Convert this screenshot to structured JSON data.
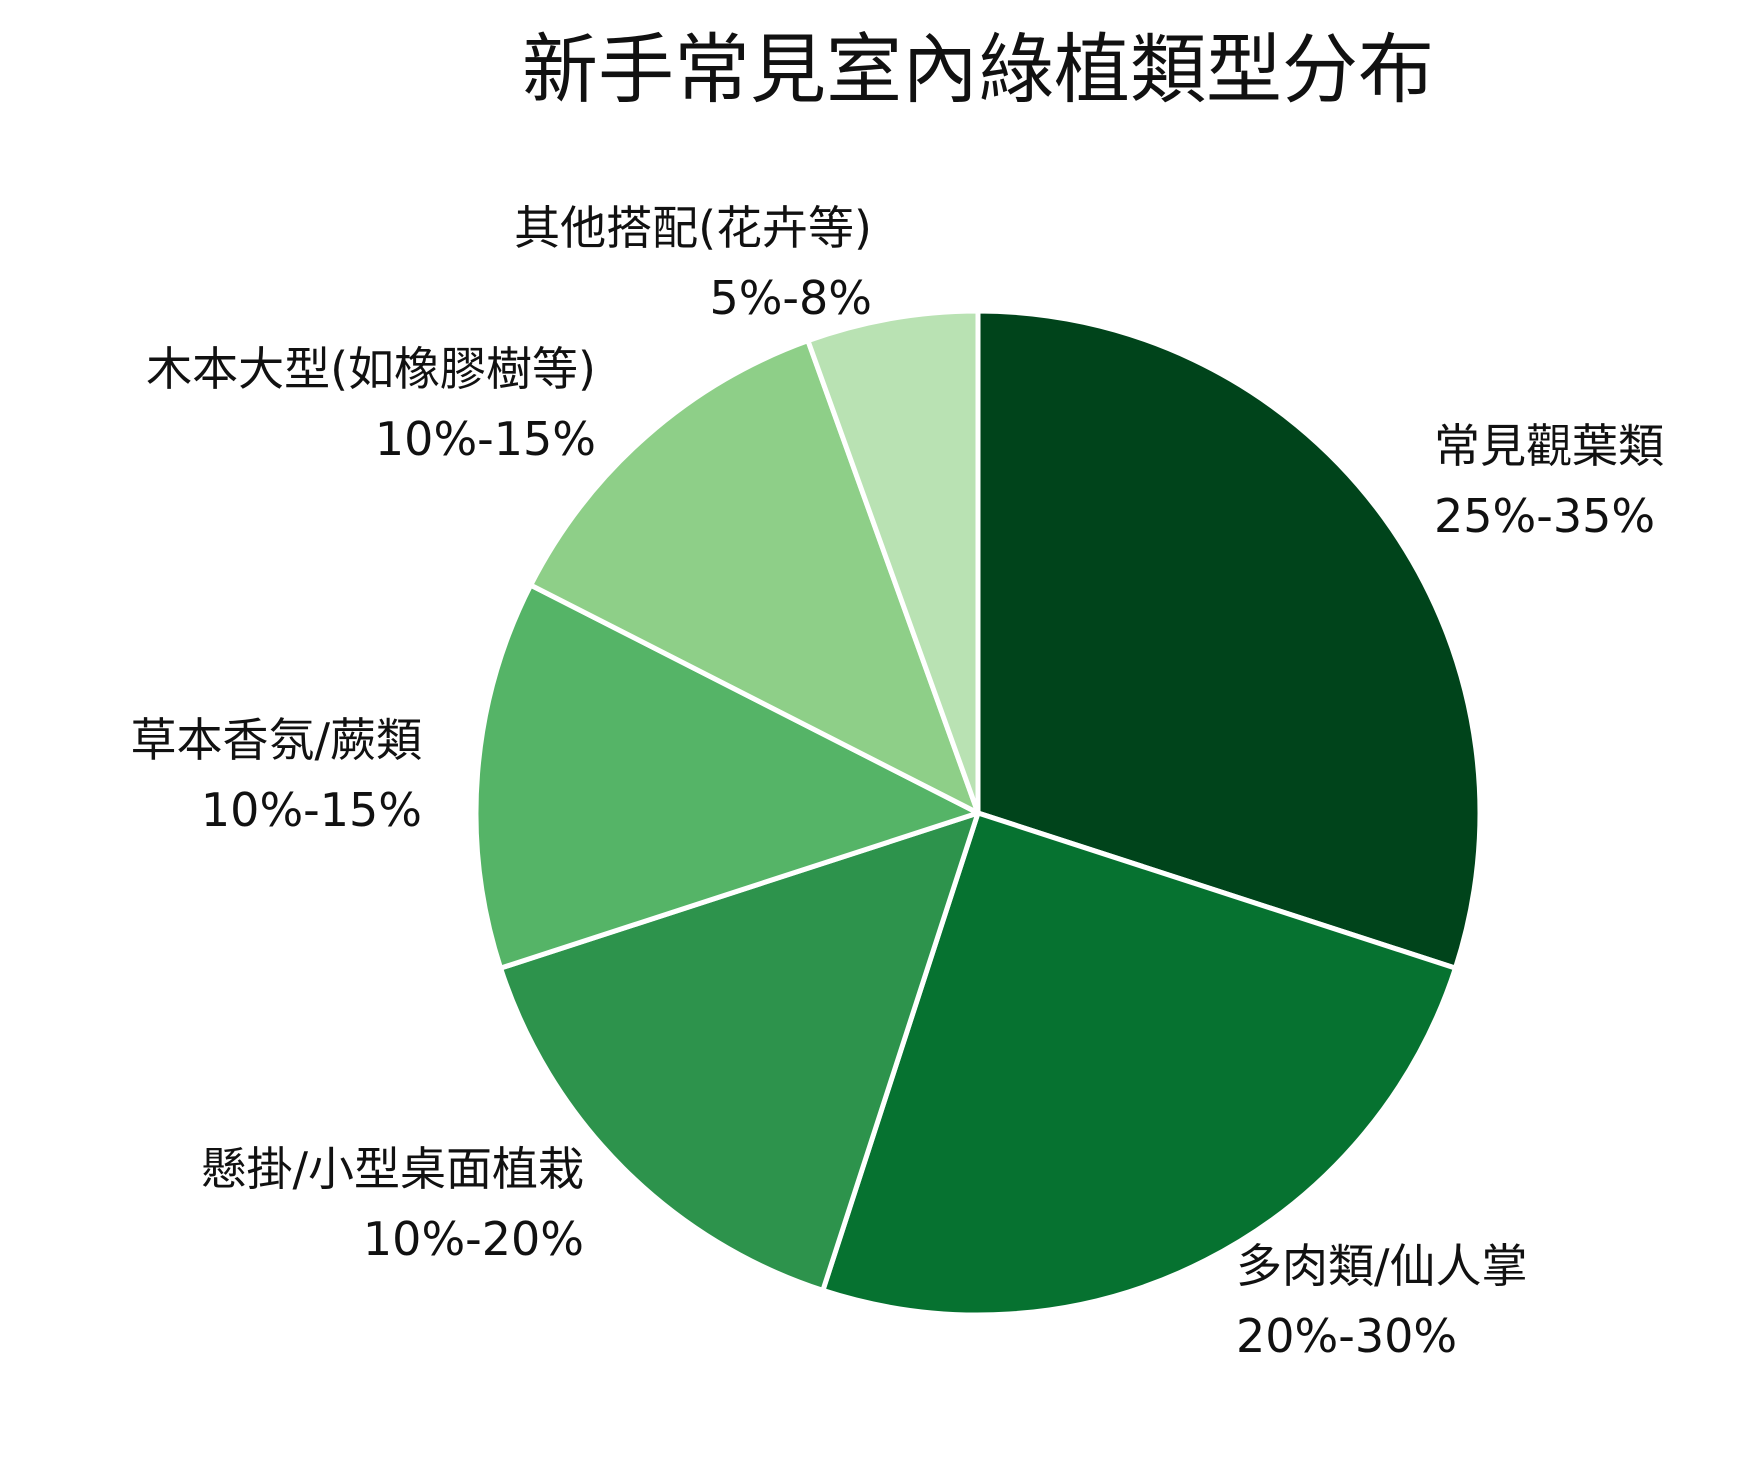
{
  "chart_data": {
    "type": "pie",
    "title": "新手常見室內綠植類型分布",
    "slices": [
      {
        "name": "常見觀葉類",
        "range": "25%-35%",
        "value": 30,
        "color": "#00441b"
      },
      {
        "name": "多肉類/仙人掌",
        "range": "20%-30%",
        "value": 25,
        "color": "#067230"
      },
      {
        "name": "懸掛/小型桌面植栽",
        "range": "10%-20%",
        "value": 15,
        "color": "#2d934c"
      },
      {
        "name": "草本香氛/蕨類",
        "range": "10%-15%",
        "value": 12.5,
        "color": "#55b467"
      },
      {
        "name": "木本大型(如橡膠樹等)",
        "range": "10%-15%",
        "value": 12,
        "color": "#8ecf88"
      },
      {
        "name": "其他搭配(花卉等)",
        "range": "5%-8%",
        "value": 5.5,
        "color": "#b9e2b3"
      }
    ],
    "start_angle_deg": 0,
    "direction": "clockwise",
    "slice_border_color": "#ffffff"
  }
}
